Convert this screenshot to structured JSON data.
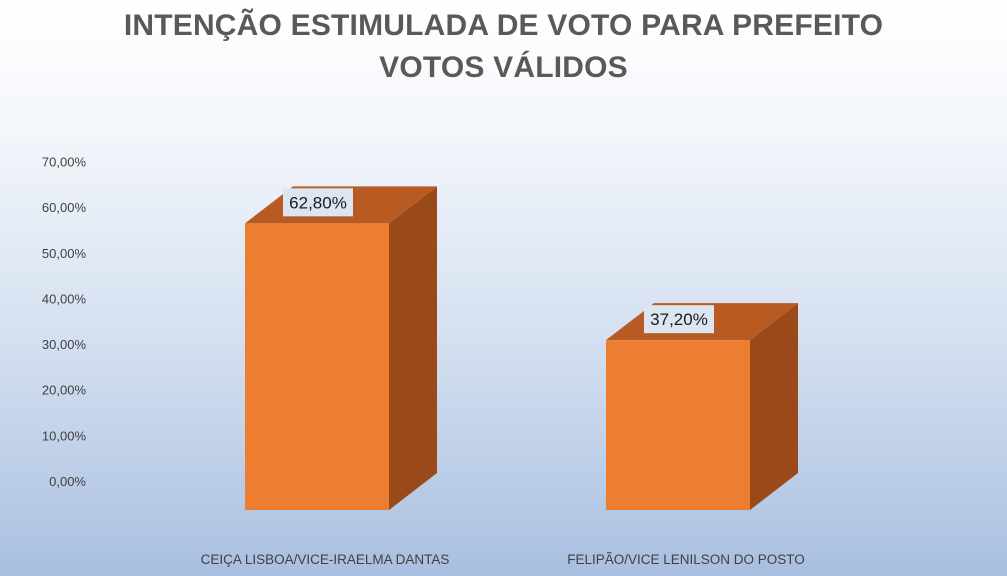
{
  "chart_data": {
    "type": "bar",
    "style": "3d-column",
    "title": [
      "INTENÇÃO ESTIMULADA DE VOTO PARA PREFEITO",
      "VOTOS VÁLIDOS"
    ],
    "categories": [
      "CEIÇA LISBOA/VICE-IRAELMA DANTAS",
      "FELIPÃO/VICE LENILSON DO POSTO"
    ],
    "values": [
      62.8,
      37.2
    ],
    "data_labels": [
      "62,80%",
      "37,20%"
    ],
    "ylim": [
      0,
      70
    ],
    "yticks": [
      0,
      10,
      20,
      30,
      40,
      50,
      60,
      70
    ],
    "ytick_labels": [
      "0,00%",
      "10,00%",
      "20,00%",
      "30,00%",
      "40,00%",
      "50,00%",
      "60,00%",
      "70,00%"
    ],
    "grid": false,
    "legend": "none",
    "colors": {
      "bar_front": "#ed7d31",
      "bar_side": "#9a4a19",
      "bar_top": "#b85b22",
      "title": "#595959",
      "label_box": "#dce6f2"
    }
  }
}
